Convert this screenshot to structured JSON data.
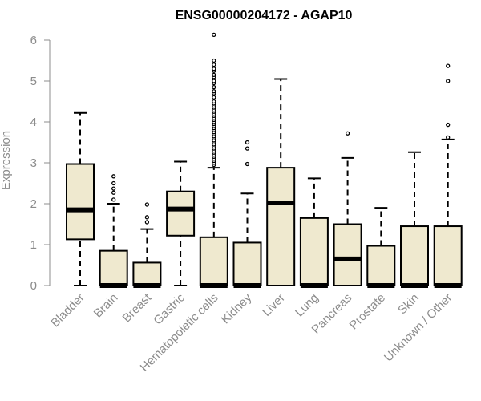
{
  "chart_data": {
    "type": "boxplot",
    "title": "ENSG00000204172 - AGAP10",
    "xlabel": "",
    "ylabel": "Expression",
    "ylim": [
      0,
      6
    ],
    "yticks": [
      "0",
      "1",
      "2",
      "3",
      "4",
      "5",
      "6"
    ],
    "grid": false,
    "colors": {
      "box_fill": "#efe9cf",
      "stroke": "#000000",
      "axis": "#8c8c8c"
    },
    "categories": [
      "Bladder",
      "Brain",
      "Breast",
      "Gastric",
      "Hematopoietic cells",
      "Kidney",
      "Liver",
      "Lung",
      "Pancreas",
      "Prostate",
      "Skin",
      "Unknown / Other"
    ],
    "boxes": [
      {
        "min": 0,
        "q1": 1.13,
        "median": 1.85,
        "q3": 2.97,
        "max": 4.22,
        "outliers": []
      },
      {
        "min": 0,
        "q1": 0,
        "median": 0,
        "q3": 0.85,
        "max": 2.0,
        "outliers": [
          2.1,
          2.27,
          2.37,
          2.5,
          2.67
        ]
      },
      {
        "min": 0,
        "q1": 0,
        "median": 0,
        "q3": 0.56,
        "max": 1.38,
        "outliers": [
          1.55,
          1.67,
          1.98
        ]
      },
      {
        "min": 0,
        "q1": 1.22,
        "median": 1.87,
        "q3": 2.3,
        "max": 3.03,
        "outliers": []
      },
      {
        "min": 0,
        "q1": 0,
        "median": 0,
        "q3": 1.18,
        "max": 2.88,
        "outliers": [
          2.95,
          3.0,
          3.05,
          3.1,
          3.15,
          3.2,
          3.25,
          3.3,
          3.35,
          3.4,
          3.45,
          3.5,
          3.55,
          3.6,
          3.65,
          3.7,
          3.75,
          3.8,
          3.85,
          3.9,
          3.95,
          4.0,
          4.05,
          4.1,
          4.15,
          4.2,
          4.25,
          4.3,
          4.35,
          4.4,
          4.45,
          4.5,
          4.6,
          4.7,
          4.75,
          4.85,
          4.95,
          5.0,
          5.1,
          5.15,
          5.25,
          5.3,
          5.4,
          5.5,
          6.13
        ]
      },
      {
        "min": 0,
        "q1": 0,
        "median": 0,
        "q3": 1.05,
        "max": 2.25,
        "outliers": [
          2.97,
          3.35,
          3.5
        ]
      },
      {
        "min": 0,
        "q1": 0,
        "median": 2.02,
        "q3": 2.88,
        "max": 5.05,
        "outliers": []
      },
      {
        "min": 0,
        "q1": 0,
        "median": 0,
        "q3": 1.65,
        "max": 2.62,
        "outliers": []
      },
      {
        "min": 0,
        "q1": 0,
        "median": 0.65,
        "q3": 1.5,
        "max": 3.12,
        "outliers": [
          3.72
        ]
      },
      {
        "min": 0,
        "q1": 0,
        "median": 0,
        "q3": 0.97,
        "max": 1.9,
        "outliers": []
      },
      {
        "min": 0,
        "q1": 0,
        "median": 0,
        "q3": 1.45,
        "max": 3.26,
        "outliers": []
      },
      {
        "min": 0,
        "q1": 0,
        "median": 0,
        "q3": 1.45,
        "max": 3.57,
        "outliers": [
          3.62,
          3.93,
          5.0,
          5.37
        ]
      }
    ]
  }
}
